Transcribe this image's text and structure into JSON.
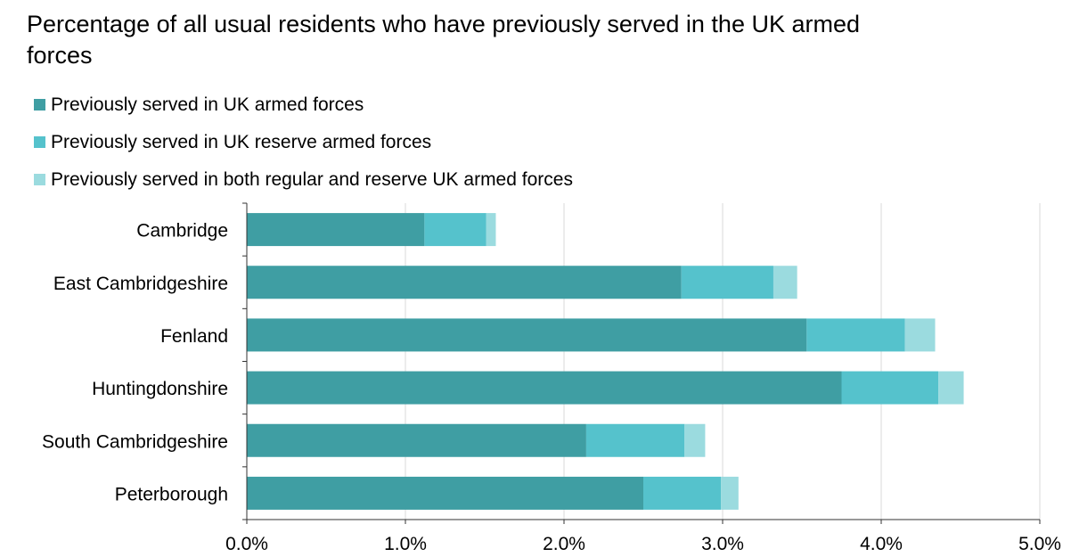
{
  "colors": {
    "regular": "#3f9ea3",
    "reserve": "#55c2cc",
    "both": "#9bdbdf",
    "grid": "#d9d9d9",
    "axis": "#333333"
  },
  "chart_data": {
    "type": "bar",
    "orientation": "horizontal",
    "stacked": true,
    "title": "Percentage of all usual residents who have previously served in the UK armed forces",
    "categories": [
      "Cambridge",
      "East Cambridgeshire",
      "Fenland",
      "Huntingdonshire",
      "South Cambridgeshire",
      "Peterborough"
    ],
    "series": [
      {
        "name": "Previously served in UK armed forces",
        "values": [
          1.12,
          2.74,
          3.53,
          3.75,
          2.14,
          2.5
        ]
      },
      {
        "name": "Previously served in UK reserve armed forces",
        "values": [
          0.39,
          0.58,
          0.62,
          0.61,
          0.62,
          0.49
        ]
      },
      {
        "name": "Previously served in both regular and reserve UK armed forces",
        "values": [
          0.06,
          0.15,
          0.19,
          0.16,
          0.13,
          0.11
        ]
      }
    ],
    "xlim": [
      0,
      5
    ],
    "xticks": [
      0,
      1,
      2,
      3,
      4,
      5
    ],
    "xtick_labels": [
      "0.0%",
      "1.0%",
      "2.0%",
      "3.0%",
      "4.0%",
      "5.0%"
    ],
    "grid": "vertical",
    "legend": "top-left"
  }
}
